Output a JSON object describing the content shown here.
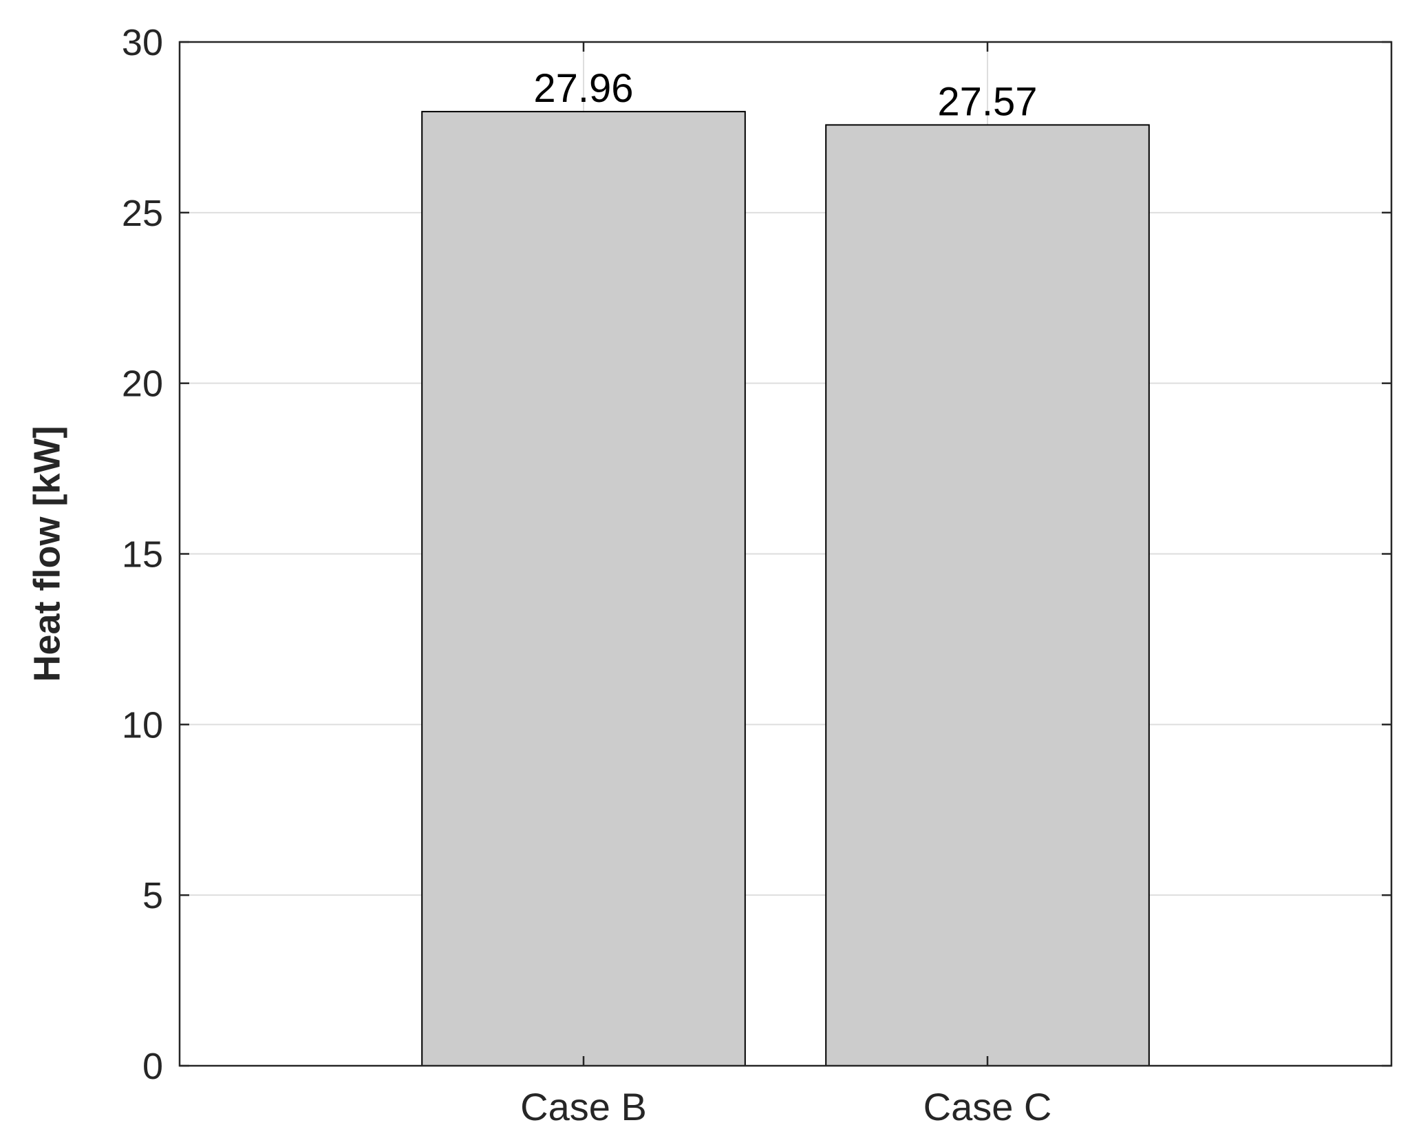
{
  "chart_data": {
    "type": "bar",
    "categories": [
      "Case B",
      "Case C"
    ],
    "values": [
      27.96,
      27.57
    ],
    "data_labels": [
      "27.96",
      "27.57"
    ],
    "title": "",
    "xlabel": "",
    "ylabel": "Heat flow [kW]",
    "ylim": [
      0,
      30
    ],
    "yticks": [
      0,
      5,
      10,
      15,
      20,
      25,
      30
    ],
    "ytick_labels": [
      "0",
      "5",
      "10",
      "15",
      "20",
      "25",
      "30"
    ],
    "xlim": [
      0,
      3
    ],
    "grid": true,
    "legend": "none",
    "colors": {
      "bar_fill": "#cccccc",
      "bar_stroke": "#000000",
      "grid": "#dedede",
      "axis": "#262626",
      "text": "#262626"
    }
  }
}
